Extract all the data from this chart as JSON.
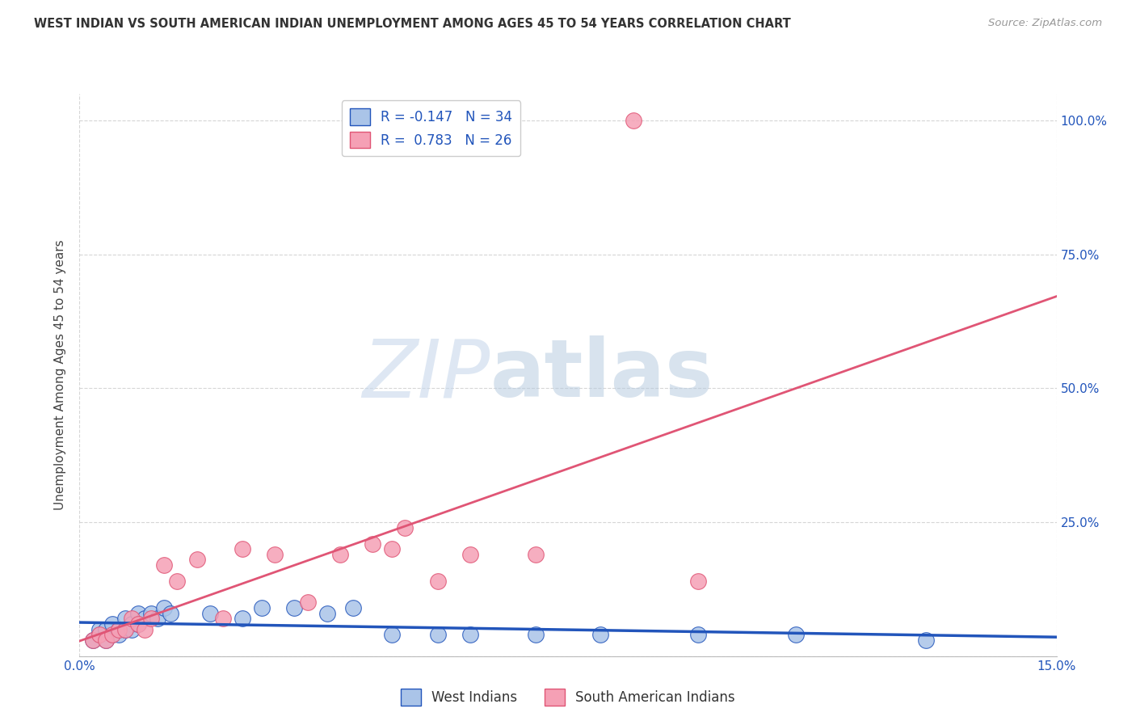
{
  "title": "WEST INDIAN VS SOUTH AMERICAN INDIAN UNEMPLOYMENT AMONG AGES 45 TO 54 YEARS CORRELATION CHART",
  "source": "Source: ZipAtlas.com",
  "ylabel": "Unemployment Among Ages 45 to 54 years",
  "xlim": [
    0.0,
    0.15
  ],
  "ylim": [
    0.0,
    1.05
  ],
  "yticks": [
    0.0,
    0.25,
    0.5,
    0.75,
    1.0
  ],
  "blue_R": -0.147,
  "blue_N": 34,
  "pink_R": 0.783,
  "pink_N": 26,
  "blue_color": "#aac4e8",
  "pink_color": "#f5a0b5",
  "blue_line_color": "#2255bb",
  "pink_line_color": "#e05575",
  "legend_label_blue": "West Indians",
  "legend_label_pink": "South American Indians",
  "blue_x": [
    0.002,
    0.003,
    0.003,
    0.004,
    0.004,
    0.005,
    0.005,
    0.006,
    0.006,
    0.007,
    0.007,
    0.008,
    0.008,
    0.009,
    0.009,
    0.01,
    0.011,
    0.012,
    0.013,
    0.014,
    0.02,
    0.025,
    0.028,
    0.033,
    0.038,
    0.042,
    0.048,
    0.055,
    0.06,
    0.07,
    0.08,
    0.095,
    0.11,
    0.13
  ],
  "blue_y": [
    0.03,
    0.04,
    0.05,
    0.03,
    0.05,
    0.04,
    0.06,
    0.05,
    0.04,
    0.07,
    0.05,
    0.06,
    0.05,
    0.08,
    0.06,
    0.07,
    0.08,
    0.07,
    0.09,
    0.08,
    0.08,
    0.07,
    0.09,
    0.09,
    0.08,
    0.09,
    0.04,
    0.04,
    0.04,
    0.04,
    0.04,
    0.04,
    0.04,
    0.03
  ],
  "pink_x": [
    0.002,
    0.003,
    0.004,
    0.005,
    0.006,
    0.007,
    0.008,
    0.009,
    0.01,
    0.011,
    0.013,
    0.015,
    0.018,
    0.022,
    0.025,
    0.03,
    0.035,
    0.04,
    0.045,
    0.048,
    0.05,
    0.055,
    0.06,
    0.07,
    0.085,
    0.095
  ],
  "pink_y": [
    0.03,
    0.04,
    0.03,
    0.04,
    0.05,
    0.05,
    0.07,
    0.06,
    0.05,
    0.07,
    0.17,
    0.14,
    0.18,
    0.07,
    0.2,
    0.19,
    0.1,
    0.19,
    0.21,
    0.2,
    0.24,
    0.14,
    0.19,
    0.19,
    1.0,
    0.14
  ],
  "watermark_zip": "ZIP",
  "watermark_atlas": "atlas",
  "background_color": "#ffffff",
  "grid_color": "#cccccc"
}
